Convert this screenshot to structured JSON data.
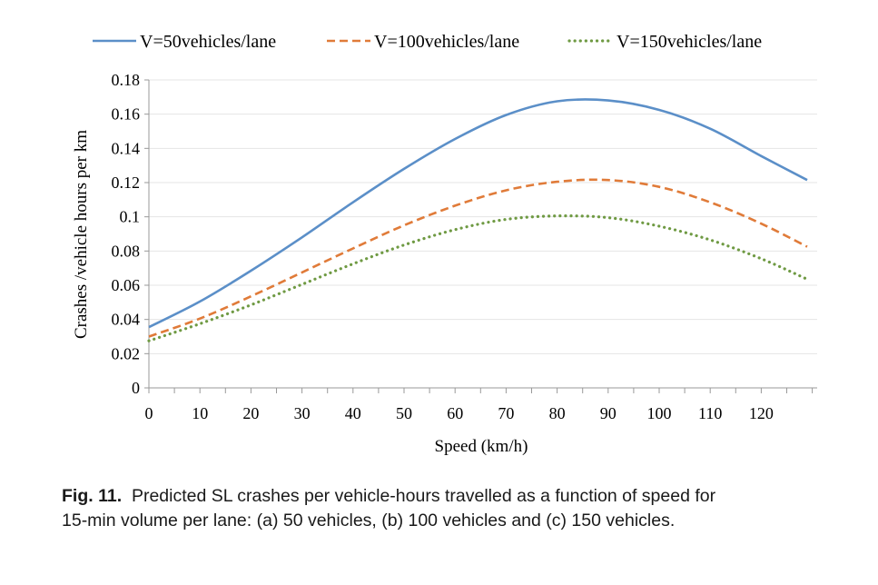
{
  "chart_data": {
    "type": "line",
    "xlabel": "Speed (km/h)",
    "ylabel": "Crashes /vehicle hours per km",
    "xlim": [
      0,
      130
    ],
    "ylim": [
      0,
      0.18
    ],
    "x_ticks": [
      "0",
      "10",
      "20",
      "30",
      "40",
      "50",
      "60",
      "70",
      "80",
      "90",
      "100",
      "110",
      "120"
    ],
    "y_ticks": [
      "0",
      "0.02",
      "0.04",
      "0.06",
      "0.08",
      "0.1",
      "0.12",
      "0.14",
      "0.16",
      "0.18"
    ],
    "grid": "horizontal",
    "legend_position": "top",
    "series": [
      {
        "name": "V=50vehicles/lane",
        "color": "#5b8fc8",
        "style": "solid",
        "x": [
          0,
          10,
          20,
          30,
          40,
          50,
          60,
          70,
          80,
          90,
          100,
          110,
          120,
          129
        ],
        "y": [
          0.0355,
          0.0505,
          0.0685,
          0.088,
          0.1085,
          0.128,
          0.1455,
          0.1595,
          0.1675,
          0.168,
          0.1625,
          0.1515,
          0.1355,
          0.1215
        ]
      },
      {
        "name": "V=100vehicles/lane",
        "color": "#e07b39",
        "style": "dashed",
        "x": [
          0,
          10,
          20,
          30,
          40,
          50,
          60,
          70,
          80,
          90,
          100,
          110,
          120,
          129
        ],
        "y": [
          0.03,
          0.0405,
          0.0535,
          0.0675,
          0.0815,
          0.095,
          0.1065,
          0.1155,
          0.1205,
          0.1215,
          0.1175,
          0.1085,
          0.096,
          0.0825
        ]
      },
      {
        "name": "V=150vehicles/lane",
        "color": "#6f9a43",
        "style": "dotted",
        "x": [
          0,
          10,
          20,
          30,
          40,
          50,
          60,
          70,
          80,
          90,
          100,
          110,
          120,
          129
        ],
        "y": [
          0.0275,
          0.0375,
          0.0485,
          0.0605,
          0.0725,
          0.0835,
          0.0925,
          0.0985,
          0.1005,
          0.0995,
          0.0945,
          0.0865,
          0.0755,
          0.0635
        ]
      }
    ]
  },
  "caption": {
    "label": "Fig. 11.",
    "line1": "Predicted SL crashes per vehicle-hours travelled as a function of speed for",
    "line2": "15-min volume per lane: (a) 50 vehicles, (b) 100 vehicles and (c) 150 vehicles."
  }
}
